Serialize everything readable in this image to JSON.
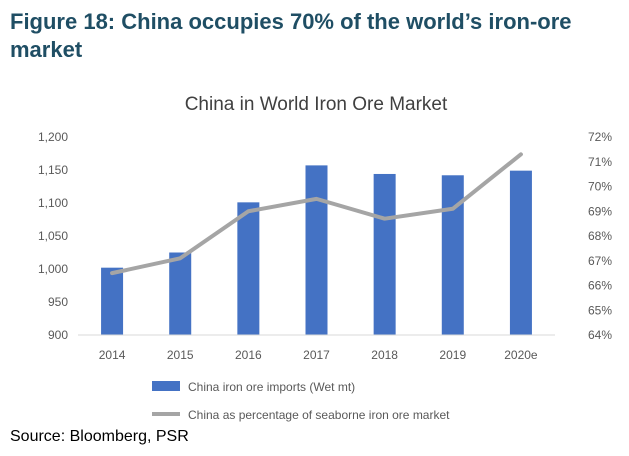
{
  "figure": {
    "title": "Figure 18: China occupies 70% of the world’s iron-ore market",
    "source": "Source: Bloomberg, PSR"
  },
  "colors": {
    "title": "#1f4e64",
    "bar": "#4472c4",
    "line": "#a5a5a5",
    "text": "#595959",
    "grid": "#d9d9d9"
  },
  "chart_data": {
    "type": "bar",
    "title": "China in World Iron Ore Market",
    "categories": [
      "2014",
      "2015",
      "2016",
      "2017",
      "2018",
      "2019",
      "2020e"
    ],
    "series": [
      {
        "name": "China iron ore imports (Wet mt)",
        "type": "bar",
        "axis": "left",
        "values": [
          1002,
          1025,
          1101,
          1157,
          1144,
          1142,
          1149
        ]
      },
      {
        "name": "China as percentage of seaborne iron ore market",
        "type": "line",
        "axis": "right",
        "values": [
          66.5,
          67.1,
          69.0,
          69.5,
          68.7,
          69.1,
          71.3
        ]
      }
    ],
    "y_left": {
      "ylim": [
        900,
        1200
      ],
      "ticks": [
        900,
        950,
        1000,
        1050,
        1100,
        1150,
        1200
      ],
      "tick_labels": [
        "900",
        "950",
        "1,000",
        "1,050",
        "1,100",
        "1,150",
        "1,200"
      ]
    },
    "y_right": {
      "ylim": [
        64,
        72
      ],
      "ticks": [
        64,
        65,
        66,
        67,
        68,
        69,
        70,
        71,
        72
      ],
      "tick_labels": [
        "64%",
        "65%",
        "66%",
        "67%",
        "68%",
        "69%",
        "70%",
        "71%",
        "72%"
      ]
    },
    "grid": false,
    "legend": "bottom"
  }
}
